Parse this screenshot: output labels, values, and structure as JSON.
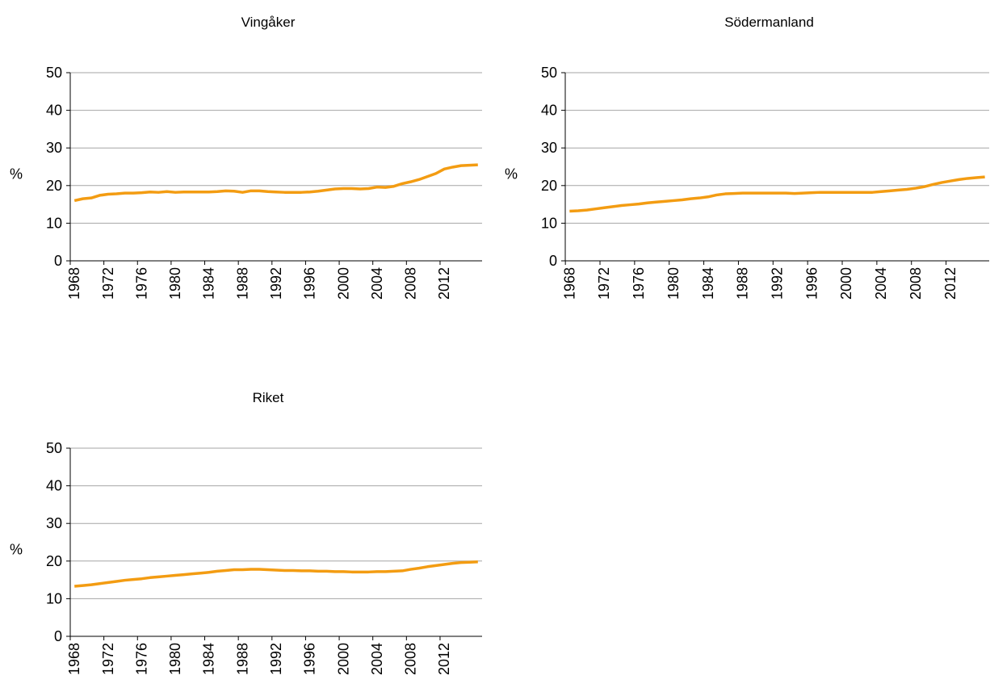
{
  "chart_data": [
    {
      "type": "line",
      "title": "Vingåker",
      "ylabel": "%",
      "x": [
        1968,
        1969,
        1970,
        1971,
        1972,
        1973,
        1974,
        1975,
        1976,
        1977,
        1978,
        1979,
        1980,
        1981,
        1982,
        1983,
        1984,
        1985,
        1986,
        1987,
        1988,
        1989,
        1990,
        1991,
        1992,
        1993,
        1994,
        1995,
        1996,
        1997,
        1998,
        1999,
        2000,
        2001,
        2002,
        2003,
        2004,
        2005,
        2006,
        2007,
        2008,
        2009,
        2010,
        2011,
        2012,
        2013,
        2014,
        2015,
        2016
      ],
      "values": [
        16.0,
        16.5,
        16.7,
        17.4,
        17.7,
        17.8,
        18.0,
        18.0,
        18.1,
        18.3,
        18.2,
        18.4,
        18.2,
        18.3,
        18.3,
        18.3,
        18.3,
        18.4,
        18.6,
        18.5,
        18.2,
        18.6,
        18.6,
        18.4,
        18.3,
        18.2,
        18.2,
        18.2,
        18.3,
        18.5,
        18.8,
        19.1,
        19.2,
        19.2,
        19.1,
        19.2,
        19.6,
        19.5,
        19.8,
        20.5,
        21.0,
        21.6,
        22.4,
        23.2,
        24.4,
        24.9,
        25.3,
        25.4,
        25.5
      ],
      "color": "#f39c12",
      "xlim": [
        1967.5,
        2016.5
      ],
      "xticks": [
        1968,
        1972,
        1976,
        1980,
        1984,
        1988,
        1992,
        1996,
        2000,
        2004,
        2008,
        2012
      ],
      "ylim": [
        0,
        50
      ],
      "yticks": [
        0,
        10,
        20,
        30,
        40,
        50
      ],
      "grid": true
    },
    {
      "type": "line",
      "title": "Södermanland",
      "ylabel": "%",
      "x": [
        1968,
        1969,
        1970,
        1971,
        1972,
        1973,
        1974,
        1975,
        1976,
        1977,
        1978,
        1979,
        1980,
        1981,
        1982,
        1983,
        1984,
        1985,
        1986,
        1987,
        1988,
        1989,
        1990,
        1991,
        1992,
        1993,
        1994,
        1995,
        1996,
        1997,
        1998,
        1999,
        2000,
        2001,
        2002,
        2003,
        2004,
        2005,
        2006,
        2007,
        2008,
        2009,
        2010,
        2011,
        2012,
        2013,
        2014,
        2015,
        2016
      ],
      "values": [
        13.2,
        13.3,
        13.5,
        13.8,
        14.1,
        14.4,
        14.7,
        14.9,
        15.1,
        15.4,
        15.6,
        15.8,
        16.0,
        16.2,
        16.5,
        16.7,
        17.0,
        17.5,
        17.8,
        17.9,
        18.0,
        18.0,
        18.0,
        18.0,
        18.0,
        18.0,
        17.9,
        18.0,
        18.1,
        18.2,
        18.2,
        18.2,
        18.2,
        18.2,
        18.2,
        18.2,
        18.4,
        18.6,
        18.8,
        19.0,
        19.3,
        19.7,
        20.3,
        20.8,
        21.2,
        21.6,
        21.9,
        22.1,
        22.3
      ],
      "color": "#f39c12",
      "xlim": [
        1967.5,
        2016.5
      ],
      "xticks": [
        1968,
        1972,
        1976,
        1980,
        1984,
        1988,
        1992,
        1996,
        2000,
        2004,
        2008,
        2012
      ],
      "ylim": [
        0,
        50
      ],
      "yticks": [
        0,
        10,
        20,
        30,
        40,
        50
      ],
      "grid": true
    },
    {
      "type": "line",
      "title": "Riket",
      "ylabel": "%",
      "x": [
        1968,
        1969,
        1970,
        1971,
        1972,
        1973,
        1974,
        1975,
        1976,
        1977,
        1978,
        1979,
        1980,
        1981,
        1982,
        1983,
        1984,
        1985,
        1986,
        1987,
        1988,
        1989,
        1990,
        1991,
        1992,
        1993,
        1994,
        1995,
        1996,
        1997,
        1998,
        1999,
        2000,
        2001,
        2002,
        2003,
        2004,
        2005,
        2006,
        2007,
        2008,
        2009,
        2010,
        2011,
        2012,
        2013,
        2014,
        2015,
        2016
      ],
      "values": [
        13.3,
        13.5,
        13.7,
        14.0,
        14.3,
        14.6,
        14.9,
        15.1,
        15.3,
        15.6,
        15.8,
        16.0,
        16.2,
        16.4,
        16.6,
        16.8,
        17.0,
        17.3,
        17.5,
        17.7,
        17.7,
        17.8,
        17.8,
        17.7,
        17.6,
        17.5,
        17.5,
        17.4,
        17.4,
        17.3,
        17.3,
        17.2,
        17.2,
        17.1,
        17.1,
        17.1,
        17.2,
        17.2,
        17.3,
        17.4,
        17.8,
        18.1,
        18.5,
        18.8,
        19.1,
        19.4,
        19.6,
        19.7,
        19.8
      ],
      "color": "#f39c12",
      "xlim": [
        1967.5,
        2016.5
      ],
      "xticks": [
        1968,
        1972,
        1976,
        1980,
        1984,
        1988,
        1992,
        1996,
        2000,
        2004,
        2008,
        2012
      ],
      "ylim": [
        0,
        50
      ],
      "yticks": [
        0,
        10,
        20,
        30,
        40,
        50
      ],
      "grid": true
    }
  ]
}
